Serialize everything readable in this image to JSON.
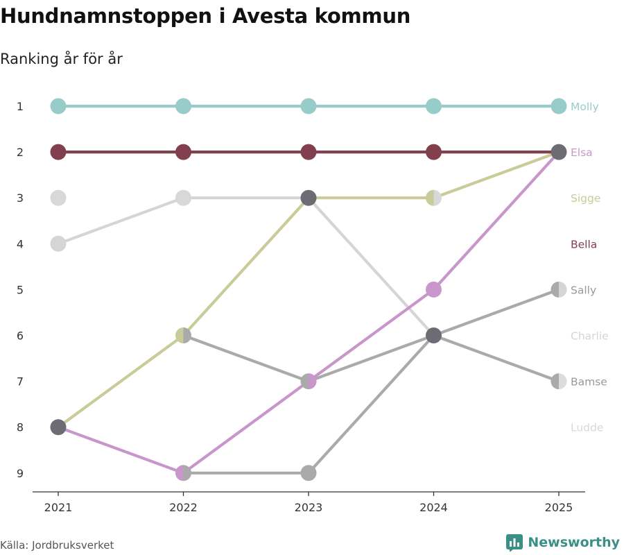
{
  "header": {
    "title": "Hundnamnstoppen i Avesta kommun",
    "subtitle": "Ranking år för år"
  },
  "footer": {
    "source": "Källa: Jordbruksverket",
    "brand": "Newsworthy",
    "brand_color": "#3a8f86"
  },
  "chart_data": {
    "type": "line",
    "title": "Hundnamnstoppen i Avesta kommun",
    "subtitle": "Ranking år för år",
    "x": [
      "2021",
      "2022",
      "2023",
      "2024",
      "2025"
    ],
    "y_ticks": [
      "1",
      "2",
      "3",
      "4",
      "5",
      "6",
      "7",
      "8",
      "9"
    ],
    "ylim": [
      1,
      9
    ],
    "y_reversed": true,
    "overlap_color": "#6d6b74",
    "series": [
      {
        "name": "Ludde",
        "color": "#dcdcdc",
        "values": [
          null,
          null,
          null,
          null,
          null
        ]
      },
      {
        "name": "Charlie",
        "color": "#d5d5d5",
        "values": [
          4,
          3,
          3,
          6,
          null
        ]
      },
      {
        "name": "Bamse",
        "color": "#aaaaaa",
        "values": [
          null,
          6,
          7,
          6,
          7
        ]
      },
      {
        "name": "Sally",
        "color": "#aaaaaa",
        "values": [
          null,
          9,
          9,
          6,
          5
        ]
      },
      {
        "name": "Sigge",
        "color": "#c9cb98",
        "values": [
          8,
          6,
          3,
          3,
          2
        ]
      },
      {
        "name": "Elsa",
        "color": "#c996cb",
        "values": [
          8,
          9,
          7,
          5,
          2
        ]
      },
      {
        "name": "Bella",
        "color": "#82404f",
        "values": [
          2,
          2,
          2,
          2,
          2
        ]
      },
      {
        "name": "Molly",
        "color": "#98cccb",
        "values": [
          1,
          1,
          1,
          1,
          1
        ]
      }
    ],
    "extra_points": [
      {
        "series": "Ludde",
        "x": "2021",
        "y": 3
      },
      {
        "series": "Ludde",
        "x": "2022",
        "y": 3
      },
      {
        "series": "Ludde",
        "x": "2023",
        "y": 3
      },
      {
        "series": "Ludde",
        "x": "2024",
        "y": 3
      }
    ],
    "end_labels": [
      {
        "name": "Molly",
        "color": "#98cccb",
        "rank": 1
      },
      {
        "name": "Elsa",
        "color": "#c996cb",
        "rank": 2
      },
      {
        "name": "Sigge",
        "color": "#c9cb98",
        "rank": 3
      },
      {
        "name": "Bella",
        "color": "#82404f",
        "rank": 4
      },
      {
        "name": "Sally",
        "color": "#999999",
        "rank": 5
      },
      {
        "name": "Charlie",
        "color": "#d5d5d5",
        "rank": 6
      },
      {
        "name": "Bamse",
        "color": "#999999",
        "rank": 7
      },
      {
        "name": "Ludde",
        "color": "#d8d8d8",
        "rank": 8
      }
    ],
    "markers": [
      {
        "x": "2021",
        "y": 1,
        "fill": "#98cccb"
      },
      {
        "x": "2022",
        "y": 1,
        "fill": "#98cccb"
      },
      {
        "x": "2023",
        "y": 1,
        "fill": "#98cccb"
      },
      {
        "x": "2024",
        "y": 1,
        "fill": "#98cccb"
      },
      {
        "x": "2025",
        "y": 1,
        "fill": "#98cccb"
      },
      {
        "x": "2021",
        "y": 2,
        "fill": "#82404f"
      },
      {
        "x": "2022",
        "y": 2,
        "fill": "#82404f"
      },
      {
        "x": "2023",
        "y": 2,
        "fill": "#82404f"
      },
      {
        "x": "2024",
        "y": 2,
        "fill": "#82404f"
      },
      {
        "x": "2025",
        "y": 2,
        "fill": "#6d6b74"
      },
      {
        "x": "2021",
        "y": 3,
        "fill": "#d8d8d8"
      },
      {
        "x": "2022",
        "y": 3,
        "fill": "#d8d8d8"
      },
      {
        "x": "2023",
        "y": 3,
        "fill": "#6d6b74"
      },
      {
        "x": "2024",
        "y": 3,
        "fill": "#c9cb98",
        "right": "#d8d8d8"
      },
      {
        "x": "2021",
        "y": 4,
        "fill": "#d5d5d5"
      },
      {
        "x": "2022",
        "y": 6,
        "fill": "#c9cb98",
        "right": "#aaaaaa"
      },
      {
        "x": "2024",
        "y": 5,
        "fill": "#c996cb"
      },
      {
        "x": "2025",
        "y": 5,
        "fill": "#aaaaaa",
        "right": "#d5d5d5"
      },
      {
        "x": "2024",
        "y": 6,
        "fill": "#6d6b74"
      },
      {
        "x": "2023",
        "y": 7,
        "fill": "#aaaaaa",
        "right": "#c996cb"
      },
      {
        "x": "2025",
        "y": 7,
        "fill": "#aaaaaa",
        "right": "#dcdcdc"
      },
      {
        "x": "2021",
        "y": 8,
        "fill": "#6d6b74"
      },
      {
        "x": "2022",
        "y": 9,
        "fill": "#c996cb",
        "right": "#aaaaaa"
      },
      {
        "x": "2023",
        "y": 9,
        "fill": "#aaaaaa"
      }
    ]
  }
}
